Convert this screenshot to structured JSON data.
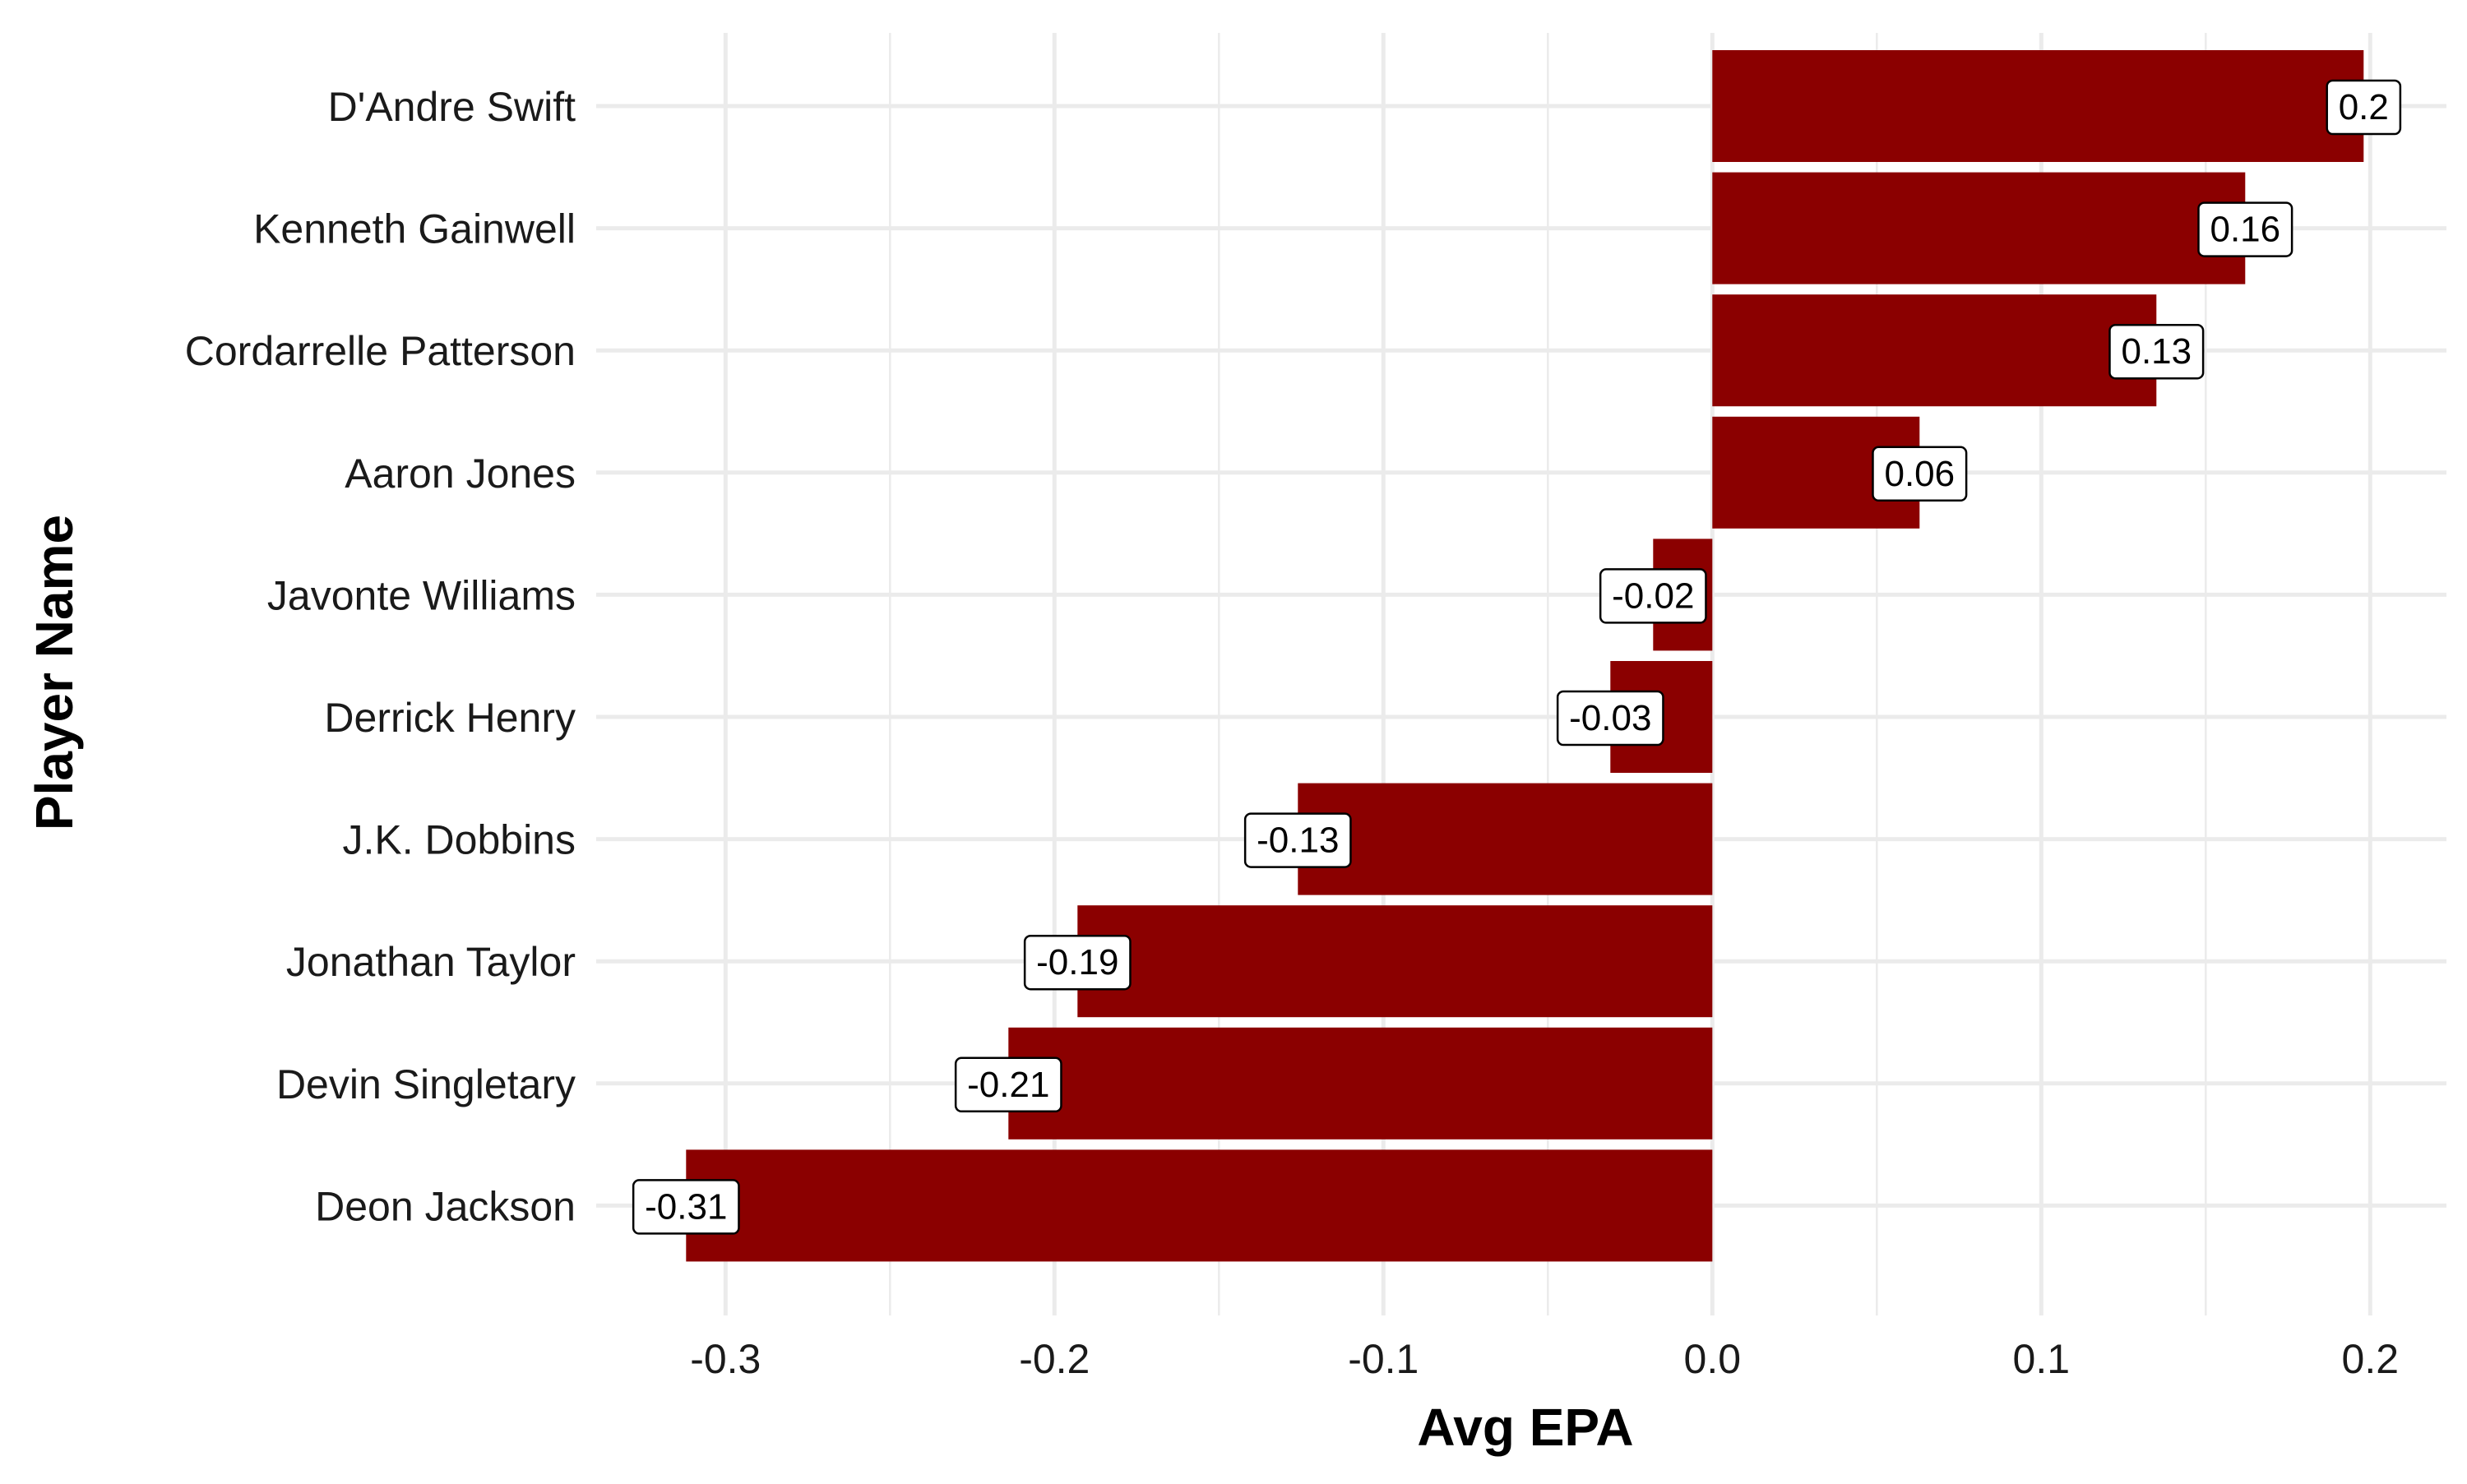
{
  "chart_data": {
    "type": "bar",
    "orientation": "horizontal",
    "title": "",
    "xlabel": "Avg EPA",
    "ylabel": "Player Name",
    "xlim": [
      -0.33,
      0.225
    ],
    "x_ticks": [
      -0.3,
      -0.2,
      -0.1,
      0.0,
      0.1,
      0.2
    ],
    "x_tick_labels": [
      "-0.3",
      "-0.2",
      "-0.1",
      "0.0",
      "0.1",
      "0.2"
    ],
    "grid": true,
    "legend": "none",
    "bar_color": "#8b0000",
    "categories": [
      "D'Andre Swift",
      "Kenneth Gainwell",
      "Cordarrelle Patterson",
      "Aaron Jones",
      "Javonte Williams",
      "Derrick Henry",
      "J.K. Dobbins",
      "Jonathan Taylor",
      "Devin Singletary",
      "Deon Jackson"
    ],
    "values": [
      0.198,
      0.162,
      0.135,
      0.063,
      -0.018,
      -0.031,
      -0.126,
      -0.193,
      -0.214,
      -0.312
    ],
    "data_labels": [
      "0.2",
      "0.16",
      "0.13",
      "0.06",
      "-0.02",
      "-0.03",
      "-0.13",
      "-0.19",
      "-0.21",
      "-0.31"
    ]
  }
}
